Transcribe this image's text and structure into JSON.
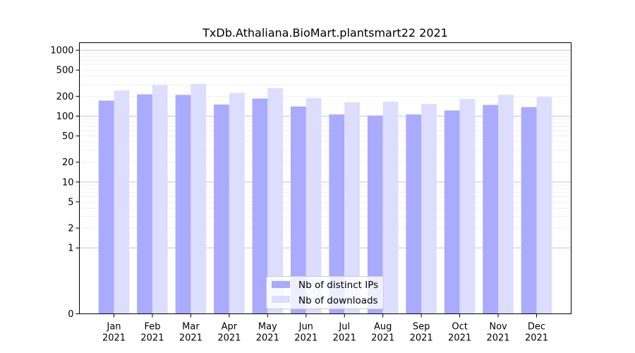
{
  "chart_data": {
    "type": "bar",
    "title": "TxDb.Athaliana.BioMart.plantsmart22 2021",
    "xlabel": "",
    "ylabel": "",
    "yscale": "symlog",
    "ylim": [
      0,
      1300
    ],
    "yticks": [
      "0",
      "1",
      "2",
      "5",
      "10",
      "20",
      "50",
      "100",
      "200",
      "500",
      "1000"
    ],
    "categories": [
      [
        "Jan",
        "2021"
      ],
      [
        "Feb",
        "2021"
      ],
      [
        "Mar",
        "2021"
      ],
      [
        "Apr",
        "2021"
      ],
      [
        "May",
        "2021"
      ],
      [
        "Jun",
        "2021"
      ],
      [
        "Jul",
        "2021"
      ],
      [
        "Aug",
        "2021"
      ],
      [
        "Sep",
        "2021"
      ],
      [
        "Oct",
        "2021"
      ],
      [
        "Nov",
        "2021"
      ],
      [
        "Dec",
        "2021"
      ]
    ],
    "series": [
      {
        "name": "Nb of distinct IPs",
        "color": "#aaaaff",
        "values": [
          172,
          214,
          210,
          150,
          185,
          140,
          106,
          102,
          106,
          122,
          148,
          137
        ]
      },
      {
        "name": "Nb of downloads",
        "color": "#ddddff",
        "values": [
          245,
          295,
          310,
          225,
          265,
          188,
          162,
          165,
          153,
          182,
          210,
          196
        ]
      }
    ],
    "grid": true,
    "legend_position": "bottom-center"
  }
}
